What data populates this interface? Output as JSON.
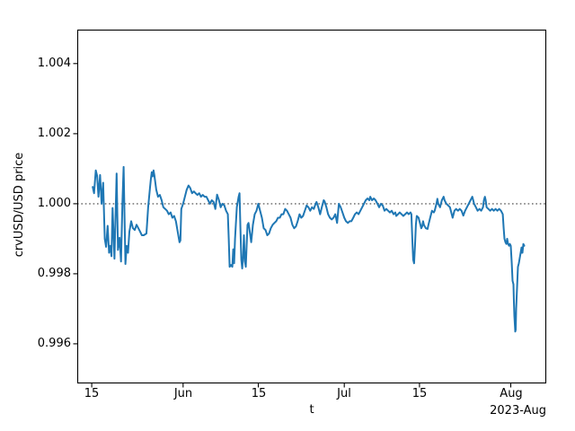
{
  "chart_data": {
    "type": "line",
    "title": "",
    "xlabel": "t",
    "ylabel": "crvUSD/USD price",
    "x_offset_label": "2023-Aug",
    "x_unit": "days_since_2023-05-15",
    "xlim": [
      -2.7,
      84.6
    ],
    "ylim": [
      0.99487,
      1.00497
    ],
    "grid": false,
    "legend": "none",
    "x_ticks": [
      {
        "v": 0,
        "label": "15"
      },
      {
        "v": 17,
        "label": "Jun"
      },
      {
        "v": 31,
        "label": "15"
      },
      {
        "v": 47,
        "label": "Jul"
      },
      {
        "v": 61,
        "label": "15"
      },
      {
        "v": 78,
        "label": "Aug"
      }
    ],
    "y_ticks": [
      {
        "v": 0.996,
        "label": "0.996"
      },
      {
        "v": 0.998,
        "label": "0.998"
      },
      {
        "v": 1.0,
        "label": "1.000"
      },
      {
        "v": 1.002,
        "label": "1.002"
      },
      {
        "v": 1.004,
        "label": "1.004"
      }
    ],
    "reference_line": {
      "y": 1.0,
      "style": "dotted",
      "color": "#7a7a7a"
    },
    "series": [
      {
        "name": "crvUSD/USD price",
        "color": "#1f77b4",
        "points": [
          [
            0.17,
            1.00048
          ],
          [
            0.42,
            1.0003
          ],
          [
            0.75,
            1.00095
          ],
          [
            1.0,
            1.0008
          ],
          [
            1.25,
            1.0002
          ],
          [
            1.55,
            1.00082
          ],
          [
            1.83,
            1.0
          ],
          [
            2.12,
            1.0006
          ],
          [
            2.42,
            0.999
          ],
          [
            2.67,
            0.99877
          ],
          [
            2.95,
            0.99937
          ],
          [
            3.22,
            0.9986
          ],
          [
            3.45,
            0.9988
          ],
          [
            3.67,
            0.9985
          ],
          [
            3.88,
            0.99988
          ],
          [
            4.22,
            0.99843
          ],
          [
            4.62,
            1.00086
          ],
          [
            4.88,
            0.99868
          ],
          [
            5.17,
            0.99903
          ],
          [
            5.45,
            0.99835
          ],
          [
            5.72,
            1.00005
          ],
          [
            5.93,
            1.00105
          ],
          [
            6.27,
            0.99828
          ],
          [
            6.5,
            0.9988
          ],
          [
            6.75,
            0.9986
          ],
          [
            7.0,
            0.9992
          ],
          [
            7.33,
            0.9995
          ],
          [
            7.67,
            0.9993
          ],
          [
            8.0,
            0.99925
          ],
          [
            8.33,
            0.9994
          ],
          [
            8.67,
            0.9993
          ],
          [
            9.0,
            0.9992
          ],
          [
            9.33,
            0.9991
          ],
          [
            9.67,
            0.9991
          ],
          [
            10.17,
            0.99915
          ],
          [
            10.5,
            0.9999
          ],
          [
            10.83,
            1.00044
          ],
          [
            11.0,
            1.0007
          ],
          [
            11.17,
            1.0009
          ],
          [
            11.33,
            1.00078
          ],
          [
            11.5,
            1.00095
          ],
          [
            11.67,
            1.0008
          ],
          [
            11.83,
            1.0006
          ],
          [
            12.0,
            1.0004
          ],
          [
            12.33,
            1.0002
          ],
          [
            12.67,
            1.00025
          ],
          [
            13.0,
            1.0001
          ],
          [
            13.33,
            0.9999
          ],
          [
            13.67,
            0.99985
          ],
          [
            14.0,
            0.9998
          ],
          [
            14.33,
            0.9997
          ],
          [
            14.67,
            0.99975
          ],
          [
            15.0,
            0.9996
          ],
          [
            15.33,
            0.99965
          ],
          [
            15.67,
            0.9995
          ],
          [
            16.0,
            0.9992
          ],
          [
            16.33,
            0.9989
          ],
          [
            16.5,
            0.99895
          ],
          [
            16.67,
            0.99985
          ],
          [
            17.0,
            1.0
          ],
          [
            17.33,
            1.0002
          ],
          [
            17.67,
            1.0004
          ],
          [
            18.0,
            1.00052
          ],
          [
            18.33,
            1.00045
          ],
          [
            18.67,
            1.0003
          ],
          [
            19.0,
            1.00035
          ],
          [
            19.33,
            1.0003
          ],
          [
            19.67,
            1.00025
          ],
          [
            20.0,
            1.0003
          ],
          [
            20.33,
            1.0002
          ],
          [
            20.67,
            1.00025
          ],
          [
            21.0,
            1.0002
          ],
          [
            21.33,
            1.0002
          ],
          [
            21.67,
            1.0001
          ],
          [
            22.0,
            1.0
          ],
          [
            22.33,
            1.0001
          ],
          [
            22.67,
            1.00005
          ],
          [
            23.0,
            0.99985
          ],
          [
            23.33,
            1.00026
          ],
          [
            23.67,
            1.0001
          ],
          [
            24.0,
            0.9999
          ],
          [
            24.33,
            1.0
          ],
          [
            24.67,
            0.99995
          ],
          [
            25.0,
            0.9998
          ],
          [
            25.33,
            0.9997
          ],
          [
            25.5,
            0.999
          ],
          [
            25.67,
            0.9982
          ],
          [
            25.92,
            0.99825
          ],
          [
            26.17,
            0.9982
          ],
          [
            26.33,
            0.9987
          ],
          [
            26.5,
            0.9983
          ],
          [
            26.67,
            0.999
          ],
          [
            27.0,
            0.9999
          ],
          [
            27.33,
            1.0002
          ],
          [
            27.5,
            1.0003
          ],
          [
            27.67,
            0.9993
          ],
          [
            27.83,
            0.9984
          ],
          [
            28.0,
            0.99815
          ],
          [
            28.17,
            0.9985
          ],
          [
            28.33,
            0.9991
          ],
          [
            28.5,
            0.99835
          ],
          [
            28.67,
            0.9982
          ],
          [
            28.83,
            0.9988
          ],
          [
            29.0,
            0.9994
          ],
          [
            29.17,
            0.99945
          ],
          [
            29.33,
            0.9993
          ],
          [
            29.67,
            0.9989
          ],
          [
            30.0,
            0.9994
          ],
          [
            30.33,
            0.9997
          ],
          [
            30.67,
            0.9998
          ],
          [
            31.0,
            1.0
          ],
          [
            31.33,
            0.9998
          ],
          [
            31.67,
            0.9996
          ],
          [
            32.0,
            0.9993
          ],
          [
            32.33,
            0.99925
          ],
          [
            32.67,
            0.9991
          ],
          [
            33.0,
            0.99915
          ],
          [
            33.33,
            0.9993
          ],
          [
            33.67,
            0.9994
          ],
          [
            34.0,
            0.99945
          ],
          [
            34.33,
            0.9995
          ],
          [
            34.67,
            0.9996
          ],
          [
            35.0,
            0.9996
          ],
          [
            35.33,
            0.9997
          ],
          [
            35.67,
            0.9997
          ],
          [
            36.0,
            0.99985
          ],
          [
            36.33,
            0.9998
          ],
          [
            36.67,
            0.9997
          ],
          [
            37.0,
            0.9996
          ],
          [
            37.33,
            0.9994
          ],
          [
            37.67,
            0.9993
          ],
          [
            38.0,
            0.99935
          ],
          [
            38.33,
            0.9995
          ],
          [
            38.67,
            0.9997
          ],
          [
            39.0,
            0.9996
          ],
          [
            39.33,
            0.99965
          ],
          [
            39.67,
            0.9998
          ],
          [
            40.0,
            0.99995
          ],
          [
            40.33,
            0.9999
          ],
          [
            40.67,
            0.9998
          ],
          [
            41.0,
            0.9999
          ],
          [
            41.33,
            0.99985
          ],
          [
            41.67,
            1.0
          ],
          [
            41.83,
            1.00005
          ],
          [
            42.17,
            0.9999
          ],
          [
            42.5,
            0.9997
          ],
          [
            42.83,
            0.9999
          ],
          [
            43.17,
            1.0001
          ],
          [
            43.33,
            1.00007
          ],
          [
            43.67,
            0.9999
          ],
          [
            44.0,
            0.9997
          ],
          [
            44.33,
            0.9996
          ],
          [
            44.67,
            0.99955
          ],
          [
            45.0,
            0.9996
          ],
          [
            45.33,
            0.9997
          ],
          [
            45.67,
            0.99945
          ],
          [
            46.0,
            1.0
          ],
          [
            46.33,
            0.9999
          ],
          [
            46.67,
            0.99975
          ],
          [
            47.0,
            0.9996
          ],
          [
            47.33,
            0.9995
          ],
          [
            47.67,
            0.99945
          ],
          [
            48.0,
            0.9995
          ],
          [
            48.33,
            0.9995
          ],
          [
            48.67,
            0.9996
          ],
          [
            49.0,
            0.9997
          ],
          [
            49.33,
            0.99975
          ],
          [
            49.67,
            0.9997
          ],
          [
            50.0,
            0.9998
          ],
          [
            50.33,
            0.9999
          ],
          [
            50.67,
            1.0
          ],
          [
            51.0,
            1.0001
          ],
          [
            51.33,
            1.00015
          ],
          [
            51.67,
            1.0001
          ],
          [
            51.83,
            1.0002
          ],
          [
            52.17,
            1.0001
          ],
          [
            52.5,
            1.00015
          ],
          [
            52.83,
            1.0001
          ],
          [
            53.17,
            1.0
          ],
          [
            53.5,
            0.9999
          ],
          [
            53.83,
            1.0
          ],
          [
            54.17,
            0.99995
          ],
          [
            54.5,
            0.9998
          ],
          [
            54.83,
            0.99985
          ],
          [
            55.17,
            0.9998
          ],
          [
            55.5,
            0.99975
          ],
          [
            55.83,
            0.9998
          ],
          [
            56.17,
            0.9997
          ],
          [
            56.5,
            0.99975
          ],
          [
            56.67,
            0.99965
          ],
          [
            57.0,
            0.9997
          ],
          [
            57.33,
            0.99975
          ],
          [
            57.67,
            0.9997
          ],
          [
            58.0,
            0.99965
          ],
          [
            58.33,
            0.9997
          ],
          [
            58.67,
            0.99975
          ],
          [
            59.0,
            0.9997
          ],
          [
            59.33,
            0.99975
          ],
          [
            59.5,
            0.9997
          ],
          [
            59.67,
            0.999
          ],
          [
            59.83,
            0.9984
          ],
          [
            60.0,
            0.9983
          ],
          [
            60.17,
            0.9988
          ],
          [
            60.33,
            0.9994
          ],
          [
            60.5,
            0.99965
          ],
          [
            60.83,
            0.9996
          ],
          [
            61.0,
            0.9995
          ],
          [
            61.17,
            0.9994
          ],
          [
            61.33,
            0.9993
          ],
          [
            61.5,
            0.99935
          ],
          [
            61.67,
            0.9995
          ],
          [
            61.83,
            0.9994
          ],
          [
            62.17,
            0.9993
          ],
          [
            62.5,
            0.99928
          ],
          [
            62.67,
            0.9994
          ],
          [
            63.0,
            0.9996
          ],
          [
            63.33,
            0.9998
          ],
          [
            63.67,
            0.99975
          ],
          [
            63.83,
            0.9998
          ],
          [
            64.17,
            1.0
          ],
          [
            64.33,
            1.00014
          ],
          [
            64.5,
            1.0
          ],
          [
            64.83,
            0.9999
          ],
          [
            65.17,
            1.0001
          ],
          [
            65.5,
            1.0002
          ],
          [
            65.67,
            1.0001
          ],
          [
            66.0,
            1.0
          ],
          [
            66.33,
            0.99995
          ],
          [
            66.67,
            0.9999
          ],
          [
            67.0,
            0.9997
          ],
          [
            67.17,
            0.9996
          ],
          [
            67.5,
            0.9998
          ],
          [
            67.83,
            0.99985
          ],
          [
            68.17,
            0.9998
          ],
          [
            68.5,
            0.99985
          ],
          [
            68.83,
            0.9998
          ],
          [
            69.17,
            0.99966
          ],
          [
            69.5,
            0.9998
          ],
          [
            69.83,
            0.9999
          ],
          [
            70.17,
            1.0
          ],
          [
            70.5,
            1.0001
          ],
          [
            70.83,
            1.0002
          ],
          [
            71.17,
            1.0
          ],
          [
            71.5,
            0.9999
          ],
          [
            71.83,
            0.9998
          ],
          [
            72.17,
            0.99985
          ],
          [
            72.5,
            0.9998
          ],
          [
            72.83,
            0.9999
          ],
          [
            73.0,
            1.0001
          ],
          [
            73.17,
            1.0002
          ],
          [
            73.33,
            1.0001
          ],
          [
            73.5,
            0.9999
          ],
          [
            73.83,
            0.99985
          ],
          [
            74.17,
            0.9998
          ],
          [
            74.5,
            0.99985
          ],
          [
            74.83,
            0.9998
          ],
          [
            75.17,
            0.99985
          ],
          [
            75.5,
            0.9998
          ],
          [
            75.83,
            0.99985
          ],
          [
            76.17,
            0.9998
          ],
          [
            76.5,
            0.9997
          ],
          [
            76.67,
            0.9993
          ],
          [
            76.83,
            0.999
          ],
          [
            77.0,
            0.9989
          ],
          [
            77.17,
            0.99885
          ],
          [
            77.33,
            0.999
          ],
          [
            77.5,
            0.99885
          ],
          [
            77.67,
            0.9988
          ],
          [
            77.83,
            0.99885
          ],
          [
            78.0,
            0.9988
          ],
          [
            78.17,
            0.9983
          ],
          [
            78.33,
            0.9978
          ],
          [
            78.5,
            0.9977
          ],
          [
            78.58,
            0.9972
          ],
          [
            78.67,
            0.9968
          ],
          [
            78.83,
            0.99635
          ],
          [
            78.92,
            0.9964
          ],
          [
            79.0,
            0.997
          ],
          [
            79.17,
            0.9976
          ],
          [
            79.33,
            0.9982
          ],
          [
            79.5,
            0.9983
          ],
          [
            79.67,
            0.99845
          ],
          [
            79.83,
            0.9986
          ],
          [
            80.0,
            0.99875
          ],
          [
            80.08,
            0.9986
          ],
          [
            80.17,
            0.9986
          ],
          [
            80.33,
            0.99885
          ],
          [
            80.5,
            0.9988
          ]
        ]
      }
    ]
  }
}
